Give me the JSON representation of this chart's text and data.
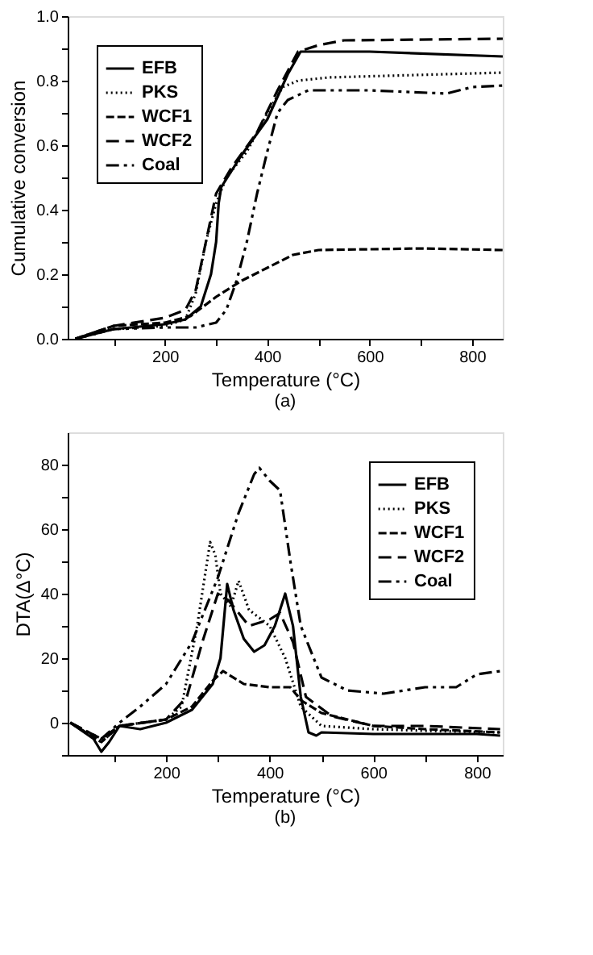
{
  "chart_data": [
    {
      "type": "line",
      "xlabel": "Temperature (°C)",
      "ylabel": "Cumulative conversion",
      "annotations": [
        "(a)"
      ],
      "grid": false,
      "legend": "top left",
      "marker": "none",
      "xlim": [
        10,
        860
      ],
      "xticks": [
        {
          "value": 100,
          "label": null
        },
        200,
        {
          "value": 300,
          "label": null
        },
        400,
        {
          "value": 500,
          "label": null
        },
        600,
        {
          "value": 700,
          "label": null
        },
        800
      ],
      "ylim": [
        0,
        1
      ],
      "yticks": [
        {
          "value": 0,
          "label": "0.0"
        },
        {
          "value": 0.1,
          "label": null
        },
        {
          "value": 0.2,
          "label": "0.2"
        },
        {
          "value": 0.3,
          "label": null
        },
        {
          "value": 0.4,
          "label": "0.4"
        },
        {
          "value": 0.5,
          "label": null
        },
        {
          "value": 0.6,
          "label": "0.6"
        },
        {
          "value": 0.7,
          "label": null
        },
        {
          "value": 0.8,
          "label": "0.8"
        },
        {
          "value": 0.9,
          "label": null
        },
        {
          "value": 1,
          "label": "1.0"
        }
      ],
      "series": [
        {
          "name": "EFB",
          "color": "#000000",
          "line_style": "solid",
          "x": [
            25,
            100,
            200,
            240,
            270,
            290,
            300,
            305,
            310,
            350,
            400,
            440,
            465,
            600,
            860
          ],
          "values": [
            0,
            0.03,
            0.045,
            0.06,
            0.1,
            0.2,
            0.3,
            0.42,
            0.47,
            0.57,
            0.68,
            0.82,
            0.89,
            0.89,
            0.875
          ]
        },
        {
          "name": "PKS",
          "color": "#000000",
          "line_style": "dotted",
          "x": [
            25,
            100,
            200,
            240,
            260,
            280,
            300,
            320,
            360,
            400,
            430,
            460,
            520,
            860
          ],
          "values": [
            0,
            0.03,
            0.04,
            0.06,
            0.14,
            0.3,
            0.42,
            0.5,
            0.58,
            0.7,
            0.78,
            0.8,
            0.81,
            0.825
          ]
        },
        {
          "name": "WCF1",
          "color": "#000000",
          "line_style": "dashed",
          "x": [
            25,
            100,
            200,
            250,
            300,
            350,
            400,
            450,
            500,
            700,
            860
          ],
          "values": [
            0,
            0.04,
            0.05,
            0.07,
            0.13,
            0.18,
            0.22,
            0.26,
            0.275,
            0.28,
            0.275
          ]
        },
        {
          "name": "WCF2",
          "color": "#000000",
          "line_style": "dashed",
          "x": [
            25,
            100,
            200,
            240,
            260,
            280,
            300,
            330,
            380,
            420,
            460,
            500,
            550,
            860
          ],
          "values": [
            0,
            0.04,
            0.065,
            0.09,
            0.15,
            0.3,
            0.45,
            0.53,
            0.64,
            0.77,
            0.89,
            0.91,
            0.925,
            0.93
          ]
        },
        {
          "name": "Coal",
          "color": "#000000",
          "line_style": "dashed",
          "x": [
            25,
            100,
            200,
            260,
            300,
            320,
            340,
            360,
            380,
            400,
            420,
            440,
            480,
            600,
            750,
            800,
            860
          ],
          "values": [
            0,
            0.03,
            0.035,
            0.035,
            0.05,
            0.09,
            0.18,
            0.3,
            0.45,
            0.58,
            0.7,
            0.74,
            0.77,
            0.77,
            0.76,
            0.78,
            0.785
          ]
        }
      ]
    },
    {
      "type": "line",
      "xlabel": "Temperature (°C)",
      "ylabel": "DTA(Δ°C)",
      "annotations": [
        "(b)"
      ],
      "grid": false,
      "legend": "top right",
      "marker": "none",
      "xlim": [
        10,
        850
      ],
      "xticks": [
        {
          "value": 100,
          "label": null
        },
        200,
        {
          "value": 300,
          "label": null
        },
        400,
        {
          "value": 500,
          "label": null
        },
        600,
        {
          "value": 700,
          "label": null
        },
        800
      ],
      "ylim": [
        -10,
        90
      ],
      "yticks": [
        {
          "value": -10,
          "label": null
        },
        0,
        {
          "value": 10,
          "label": null
        },
        20,
        {
          "value": 30,
          "label": null
        },
        40,
        {
          "value": 50,
          "label": null
        },
        60,
        {
          "value": 70,
          "label": null
        },
        80
      ],
      "series": [
        {
          "name": "EFB",
          "color": "#000000",
          "line_style": "solid",
          "x": [
            15,
            60,
            75,
            90,
            110,
            150,
            200,
            250,
            290,
            305,
            318,
            330,
            350,
            370,
            390,
            410,
            430,
            445,
            460,
            475,
            490,
            500,
            600,
            700,
            800,
            845
          ],
          "values": [
            0,
            -5,
            -9,
            -6,
            -1,
            -2,
            0,
            4,
            12,
            20,
            43,
            35,
            26,
            22,
            24,
            30,
            40,
            30,
            8,
            -3,
            -4,
            -3,
            -3.5,
            -3.5,
            -3.5,
            -4
          ]
        },
        {
          "name": "PKS",
          "color": "#000000",
          "line_style": "dotted",
          "x": [
            15,
            75,
            110,
            200,
            230,
            260,
            285,
            295,
            305,
            325,
            340,
            360,
            400,
            430,
            460,
            500,
            600,
            700,
            845
          ],
          "values": [
            0,
            -6,
            -1,
            1,
            5,
            30,
            56,
            52,
            40,
            36,
            44,
            35,
            30,
            20,
            5,
            -1,
            -2,
            -2.5,
            -3
          ]
        },
        {
          "name": "WCF1",
          "color": "#000000",
          "line_style": "dashed",
          "x": [
            15,
            75,
            110,
            200,
            250,
            290,
            310,
            350,
            400,
            440,
            460,
            500,
            600,
            700,
            845
          ],
          "values": [
            0,
            -6,
            -1,
            1,
            5,
            13,
            16,
            12,
            11,
            11,
            7,
            3,
            -1,
            -2,
            -3
          ]
        },
        {
          "name": "WCF2",
          "color": "#000000",
          "line_style": "dashed",
          "x": [
            15,
            75,
            110,
            200,
            240,
            270,
            300,
            320,
            360,
            400,
            420,
            445,
            470,
            520,
            600,
            700,
            845
          ],
          "values": [
            0,
            -5,
            -1,
            1,
            8,
            25,
            40,
            38,
            30,
            32,
            34,
            25,
            8,
            2,
            -1,
            -1,
            -2
          ]
        },
        {
          "name": "Coal",
          "color": "#000000",
          "line_style": "dashed",
          "x": [
            15,
            75,
            110,
            150,
            200,
            250,
            300,
            340,
            370,
            380,
            400,
            420,
            440,
            460,
            500,
            550,
            620,
            700,
            760,
            800,
            845
          ],
          "values": [
            0,
            -5,
            0,
            5,
            12,
            25,
            45,
            65,
            77,
            79,
            75,
            72,
            50,
            30,
            14,
            10,
            9,
            11,
            11,
            15,
            16
          ]
        }
      ]
    }
  ]
}
